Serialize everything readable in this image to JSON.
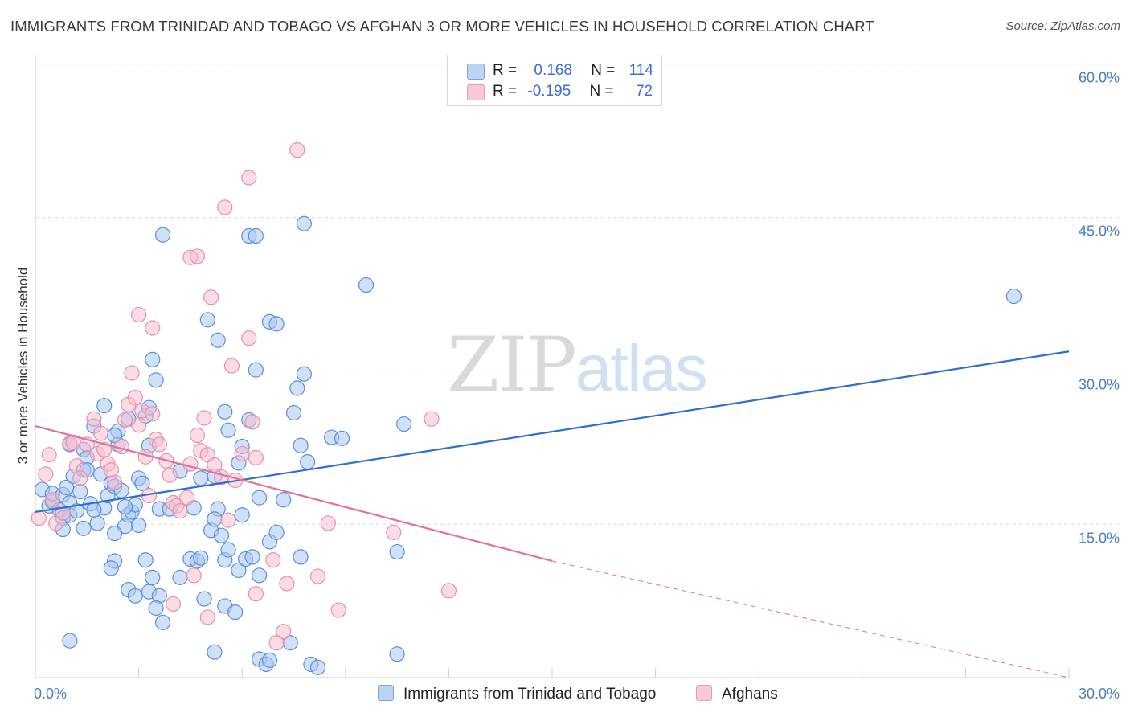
{
  "title": "IMMIGRANTS FROM TRINIDAD AND TOBAGO VS AFGHAN 3 OR MORE VEHICLES IN HOUSEHOLD CORRELATION CHART",
  "source": "Source: ZipAtlas.com",
  "watermark": {
    "zip": "ZIP",
    "atlas": "atlas"
  },
  "colors": {
    "blue_fill": "#a9c6f0",
    "blue_stroke": "#5b8fd8",
    "blue_line": "#2f6fcf",
    "pink_fill": "#f6bfd0",
    "pink_stroke": "#e88fab",
    "pink_line": "#e2709a",
    "tick_text": "#4a7cc9",
    "grid": "#d9d9d9"
  },
  "legend": {
    "rows": [
      {
        "r_label": "R =",
        "r_value": "0.168",
        "n_label": "N =",
        "n_value": "114"
      },
      {
        "r_label": "R =",
        "r_value": "-0.195",
        "n_label": "N =",
        "n_value": "72"
      }
    ]
  },
  "chart_data": {
    "type": "scatter",
    "title": "IMMIGRANTS FROM TRINIDAD AND TOBAGO VS AFGHAN 3 OR MORE VEHICLES IN HOUSEHOLD CORRELATION CHART",
    "xlabel": "",
    "ylabel": "3 or more Vehicles in Household",
    "xlim": [
      0,
      30
    ],
    "ylim": [
      0,
      60
    ],
    "x_tick_labels": [
      "0.0%",
      "30.0%"
    ],
    "y_ticks": [
      15,
      30,
      45,
      60
    ],
    "y_tick_labels": [
      "15.0%",
      "30.0%",
      "45.0%",
      "60.0%"
    ],
    "grid": true,
    "legend_position": "top-center",
    "series": [
      {
        "name": "Immigrants from Trinidad and Tobago",
        "color": "#5b8fd8",
        "R": 0.168,
        "N": 114,
        "trend": {
          "x0": 0,
          "y0": 16.2,
          "x1": 30,
          "y1": 31.9
        },
        "points": [
          [
            0.2,
            18.4
          ],
          [
            0.4,
            16.8
          ],
          [
            0.5,
            17.2
          ],
          [
            0.5,
            18.0
          ],
          [
            0.7,
            16.4
          ],
          [
            0.8,
            15.6
          ],
          [
            0.8,
            17.9
          ],
          [
            0.9,
            18.6
          ],
          [
            1.0,
            15.9
          ],
          [
            1.0,
            17.1
          ],
          [
            1.1,
            19.7
          ],
          [
            1.2,
            16.3
          ],
          [
            1.3,
            18.2
          ],
          [
            1.4,
            22.3
          ],
          [
            1.4,
            20.3
          ],
          [
            1.5,
            21.5
          ],
          [
            1.6,
            17.0
          ],
          [
            1.8,
            15.1
          ],
          [
            1.9,
            19.9
          ],
          [
            2.0,
            16.6
          ],
          [
            2.1,
            17.8
          ],
          [
            2.2,
            19.0
          ],
          [
            2.3,
            18.7
          ],
          [
            2.4,
            22.8
          ],
          [
            2.5,
            18.3
          ],
          [
            2.6,
            14.8
          ],
          [
            2.7,
            15.9
          ],
          [
            2.8,
            16.2
          ],
          [
            1.0,
            22.8
          ],
          [
            1.5,
            20.3
          ],
          [
            1.7,
            24.6
          ],
          [
            2.0,
            26.6
          ],
          [
            2.4,
            24.1
          ],
          [
            2.7,
            25.3
          ],
          [
            3.2,
            25.6
          ],
          [
            3.3,
            26.4
          ],
          [
            2.3,
            23.7
          ],
          [
            3.3,
            22.7
          ],
          [
            3.0,
            19.5
          ],
          [
            3.1,
            19.0
          ],
          [
            2.9,
            16.9
          ],
          [
            3.6,
            16.5
          ],
          [
            2.3,
            14.1
          ],
          [
            3.0,
            14.9
          ],
          [
            0.8,
            14.5
          ],
          [
            1.4,
            14.6
          ],
          [
            3.5,
            29.1
          ],
          [
            3.4,
            31.1
          ],
          [
            3.9,
            16.5
          ],
          [
            4.6,
            16.6
          ],
          [
            5.3,
            16.5
          ],
          [
            4.2,
            20.2
          ],
          [
            5.2,
            19.7
          ],
          [
            2.3,
            11.4
          ],
          [
            2.2,
            10.7
          ],
          [
            3.2,
            11.5
          ],
          [
            3.4,
            9.8
          ],
          [
            2.7,
            8.6
          ],
          [
            2.9,
            8.0
          ],
          [
            3.3,
            8.4
          ],
          [
            3.6,
            8.0
          ],
          [
            3.5,
            6.8
          ],
          [
            3.7,
            5.4
          ],
          [
            4.2,
            9.8
          ],
          [
            4.5,
            11.6
          ],
          [
            4.7,
            11.4
          ],
          [
            4.8,
            11.7
          ],
          [
            5.5,
            11.5
          ],
          [
            5.1,
            14.4
          ],
          [
            5.4,
            13.9
          ],
          [
            5.2,
            15.5
          ],
          [
            6.0,
            15.9
          ],
          [
            5.6,
            12.5
          ],
          [
            4.9,
            7.7
          ],
          [
            5.5,
            7.0
          ],
          [
            5.8,
            6.4
          ],
          [
            5.9,
            10.5
          ],
          [
            6.1,
            11.6
          ],
          [
            6.3,
            11.8
          ],
          [
            6.5,
            10.0
          ],
          [
            7.7,
            11.8
          ],
          [
            6.8,
            13.3
          ],
          [
            7.0,
            14.2
          ],
          [
            6.5,
            17.6
          ],
          [
            7.2,
            17.4
          ],
          [
            4.8,
            19.5
          ],
          [
            5.9,
            21.0
          ],
          [
            6.0,
            22.6
          ],
          [
            5.6,
            24.2
          ],
          [
            5.5,
            26.0
          ],
          [
            6.2,
            25.2
          ],
          [
            6.4,
            30.1
          ],
          [
            5.3,
            33.0
          ],
          [
            6.8,
            34.8
          ],
          [
            7.0,
            34.6
          ],
          [
            7.6,
            28.3
          ],
          [
            7.8,
            29.7
          ],
          [
            7.5,
            25.9
          ],
          [
            7.7,
            22.7
          ],
          [
            7.9,
            21.1
          ],
          [
            8.6,
            23.5
          ],
          [
            8.9,
            23.4
          ],
          [
            10.7,
            24.8
          ],
          [
            10.5,
            12.3
          ],
          [
            9.6,
            38.4
          ],
          [
            6.2,
            43.2
          ],
          [
            7.8,
            44.4
          ],
          [
            3.7,
            43.3
          ],
          [
            6.4,
            43.2
          ],
          [
            5.0,
            35.0
          ],
          [
            1.7,
            16.4
          ],
          [
            2.6,
            16.7
          ],
          [
            28.4,
            37.3
          ],
          [
            1.0,
            3.6
          ],
          [
            5.2,
            2.5
          ],
          [
            6.5,
            1.8
          ],
          [
            6.7,
            1.3
          ],
          [
            7.4,
            3.4
          ],
          [
            8.0,
            1.3
          ],
          [
            8.2,
            1.0
          ],
          [
            10.5,
            2.3
          ],
          [
            6.8,
            1.7
          ]
        ]
      },
      {
        "name": "Afghans",
        "color": "#e88fab",
        "R": -0.195,
        "N": 72,
        "trend": {
          "x0": 0,
          "y0": 24.6,
          "x1": 15,
          "y1": 11.4
        },
        "trend_dashed": {
          "x0": 15,
          "y0": 11.4,
          "x1": 30,
          "y1": -1.6
        },
        "points": [
          [
            0.1,
            15.6
          ],
          [
            0.3,
            19.9
          ],
          [
            0.4,
            21.8
          ],
          [
            0.5,
            17.4
          ],
          [
            0.6,
            15.1
          ],
          [
            0.8,
            16.1
          ],
          [
            1.0,
            22.9
          ],
          [
            1.1,
            23.0
          ],
          [
            1.2,
            20.7
          ],
          [
            1.3,
            19.5
          ],
          [
            1.5,
            22.8
          ],
          [
            1.7,
            25.3
          ],
          [
            1.8,
            21.9
          ],
          [
            1.9,
            23.9
          ],
          [
            2.0,
            22.3
          ],
          [
            2.1,
            20.9
          ],
          [
            2.2,
            20.3
          ],
          [
            2.3,
            19.1
          ],
          [
            2.5,
            22.6
          ],
          [
            2.6,
            25.2
          ],
          [
            2.7,
            26.7
          ],
          [
            2.8,
            29.8
          ],
          [
            2.9,
            27.4
          ],
          [
            3.0,
            24.7
          ],
          [
            3.1,
            26.1
          ],
          [
            3.2,
            21.6
          ],
          [
            3.3,
            17.8
          ],
          [
            3.4,
            25.8
          ],
          [
            3.5,
            23.3
          ],
          [
            3.6,
            22.8
          ],
          [
            3.8,
            21.2
          ],
          [
            3.9,
            19.8
          ],
          [
            4.0,
            17.1
          ],
          [
            4.1,
            16.8
          ],
          [
            4.2,
            16.3
          ],
          [
            4.4,
            17.6
          ],
          [
            4.5,
            20.9
          ],
          [
            4.7,
            23.7
          ],
          [
            4.8,
            22.2
          ],
          [
            5.0,
            21.8
          ],
          [
            5.2,
            20.8
          ],
          [
            5.4,
            19.6
          ],
          [
            4.9,
            25.4
          ],
          [
            5.6,
            15.4
          ],
          [
            5.8,
            19.3
          ],
          [
            6.0,
            21.9
          ],
          [
            6.3,
            25.0
          ],
          [
            6.4,
            21.5
          ],
          [
            5.7,
            30.5
          ],
          [
            6.2,
            33.2
          ],
          [
            4.5,
            41.1
          ],
          [
            4.7,
            41.2
          ],
          [
            5.1,
            37.2
          ],
          [
            3.0,
            35.5
          ],
          [
            3.4,
            34.2
          ],
          [
            5.5,
            46.0
          ],
          [
            6.2,
            48.9
          ],
          [
            7.6,
            51.6
          ],
          [
            8.5,
            15.1
          ],
          [
            10.4,
            14.2
          ],
          [
            11.5,
            25.3
          ],
          [
            12.0,
            8.5
          ],
          [
            4.6,
            10.0
          ],
          [
            6.9,
            11.5
          ],
          [
            7.3,
            9.2
          ],
          [
            8.2,
            9.9
          ],
          [
            6.4,
            8.2
          ],
          [
            7.2,
            4.5
          ],
          [
            8.8,
            6.6
          ],
          [
            4.0,
            7.2
          ],
          [
            5.0,
            5.9
          ],
          [
            7.0,
            3.4
          ]
        ]
      }
    ]
  }
}
